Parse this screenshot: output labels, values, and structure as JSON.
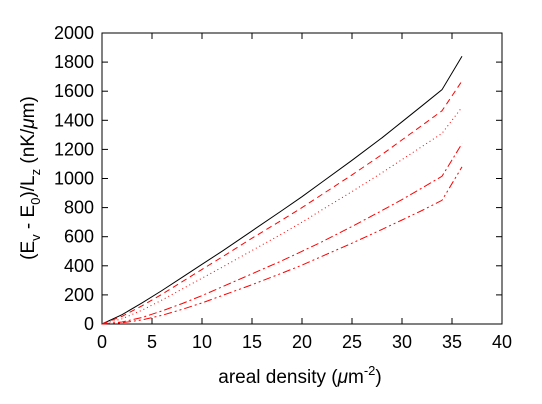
{
  "chart_data": {
    "type": "line",
    "xlabel_parts": {
      "pre": "areal density (",
      "mu": "μ",
      "m": "m",
      "exp": "-2",
      "post": ")"
    },
    "ylabel_parts": {
      "pre": "(E",
      "sub_v": "v",
      "mid": " - E",
      "sub_0": "0",
      "mid2": ")/L",
      "sub_z": "z",
      "post": "  (nK/",
      "mu": "μ",
      "end": "m)"
    },
    "xlim": [
      0,
      40
    ],
    "ylim": [
      0,
      2000
    ],
    "xticks": [
      0,
      5,
      10,
      15,
      20,
      25,
      30,
      35,
      40
    ],
    "yticks": [
      0,
      200,
      400,
      600,
      800,
      1000,
      1200,
      1400,
      1600,
      1800,
      2000
    ],
    "grid": false,
    "series": [
      {
        "color": "#000000",
        "dash": "",
        "x": [
          0,
          2,
          4,
          6,
          8,
          10,
          12,
          15,
          18,
          20,
          22,
          25,
          28,
          30,
          32,
          34,
          36
        ],
        "y": [
          0,
          64,
          145,
          230,
          320,
          410,
          500,
          640,
          780,
          875,
          975,
          1125,
          1280,
          1390,
          1500,
          1610,
          1840
        ]
      },
      {
        "color": "#ff0000",
        "dash": "6,4",
        "x": [
          0,
          2,
          4,
          6,
          8,
          10,
          12,
          15,
          18,
          20,
          22,
          25,
          28,
          30,
          32,
          34,
          36
        ],
        "y": [
          0,
          52,
          125,
          205,
          290,
          375,
          460,
          590,
          715,
          800,
          890,
          1025,
          1165,
          1265,
          1365,
          1465,
          1670
        ]
      },
      {
        "color": "#ff0000",
        "dash": "1,3",
        "x": [
          0,
          2,
          4,
          6,
          8,
          10,
          12,
          15,
          18,
          20,
          22,
          25,
          28,
          30,
          32,
          34,
          36
        ],
        "y": [
          0,
          36,
          95,
          165,
          240,
          315,
          390,
          505,
          620,
          700,
          785,
          910,
          1040,
          1130,
          1220,
          1310,
          1490
        ]
      },
      {
        "color": "#ff0000",
        "dash": "8,3,2,3",
        "x": [
          0,
          2,
          4,
          6,
          8,
          10,
          12,
          15,
          18,
          20,
          22,
          25,
          28,
          30,
          32,
          34,
          36
        ],
        "y": [
          0,
          14,
          45,
          90,
          140,
          195,
          255,
          345,
          435,
          500,
          565,
          670,
          780,
          855,
          935,
          1015,
          1240
        ]
      },
      {
        "color": "#ff0000",
        "dash": "8,3,2,3,2,3",
        "x": [
          0,
          2,
          4,
          6,
          8,
          10,
          12,
          15,
          18,
          20,
          22,
          25,
          28,
          30,
          32,
          34,
          36
        ],
        "y": [
          0,
          8,
          28,
          60,
          100,
          145,
          195,
          270,
          350,
          405,
          465,
          555,
          650,
          715,
          780,
          850,
          1080
        ]
      }
    ]
  }
}
